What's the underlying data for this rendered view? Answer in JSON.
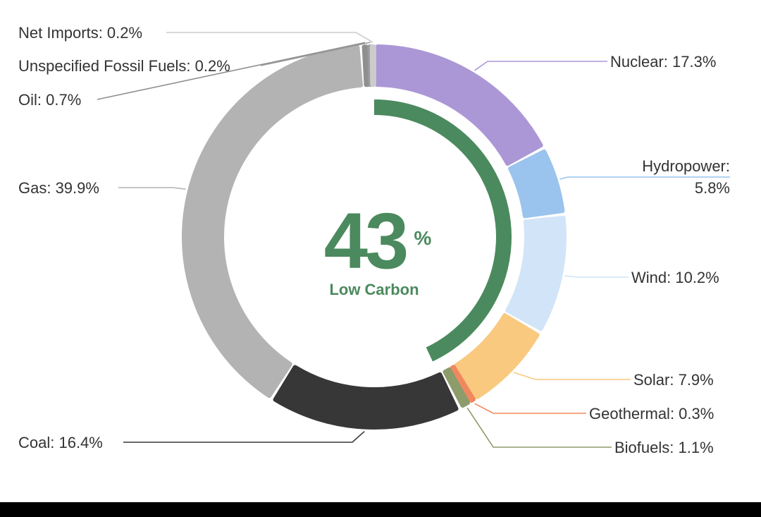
{
  "chart_data": {
    "type": "pie",
    "variant": "donut",
    "series": [
      {
        "name": "Nuclear",
        "value": 17.3,
        "label": "Nuclear: 17.3%",
        "color": "#ab97d6"
      },
      {
        "name": "Hydropower",
        "value": 5.8,
        "label_lines": [
          "Hydropower:",
          "5.8%"
        ],
        "color": "#9ac3ee"
      },
      {
        "name": "Wind",
        "value": 10.2,
        "label": "Wind: 10.2%",
        "color": "#d2e4f8"
      },
      {
        "name": "Solar",
        "value": 7.9,
        "label": "Solar: 7.9%",
        "color": "#f8c97f"
      },
      {
        "name": "Geothermal",
        "value": 0.3,
        "label": "Geothermal: 0.3%",
        "color": "#f0885f"
      },
      {
        "name": "Biofuels",
        "value": 1.1,
        "label": "Biofuels: 1.1%",
        "color": "#8d9c6b"
      },
      {
        "name": "Coal",
        "value": 16.4,
        "label": "Coal: 16.4%",
        "color": "#373737"
      },
      {
        "name": "Gas",
        "value": 39.9,
        "label": "Gas: 39.9%",
        "color": "#b3b3b3"
      },
      {
        "name": "Oil",
        "value": 0.7,
        "label": "Oil: 0.7%",
        "color": "#8f8f8f"
      },
      {
        "name": "Unspecified Fossil Fuels",
        "value": 0.2,
        "label": "Unspecified Fossil Fuels: 0.2%",
        "color": "#9a9a9a"
      },
      {
        "name": "Net Imports",
        "value": 0.2,
        "label": "Net Imports: 0.2%",
        "color": "#cccccc"
      }
    ],
    "center": {
      "value": "43",
      "unit": "%",
      "caption": "Low Carbon",
      "percent": 43,
      "color": "#4b8a5e"
    },
    "legend": "none"
  }
}
